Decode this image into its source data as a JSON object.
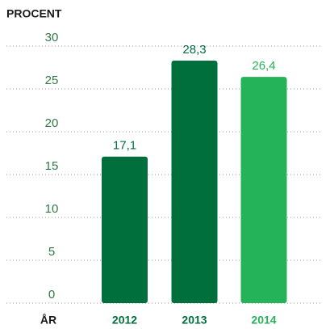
{
  "chart_data": {
    "type": "bar",
    "y_label": "PROCENT",
    "x_label": "ÅR",
    "categories": [
      "2012",
      "2013",
      "2014"
    ],
    "values": [
      17.1,
      28.3,
      26.4
    ],
    "value_labels": [
      "17,1",
      "28,3",
      "26,4"
    ],
    "colors": [
      "#006f3c",
      "#006f3c",
      "#25b35a"
    ],
    "ylim": [
      0,
      30
    ],
    "yticks": [
      0,
      5,
      10,
      15,
      20,
      25,
      30
    ],
    "grid": true
  }
}
